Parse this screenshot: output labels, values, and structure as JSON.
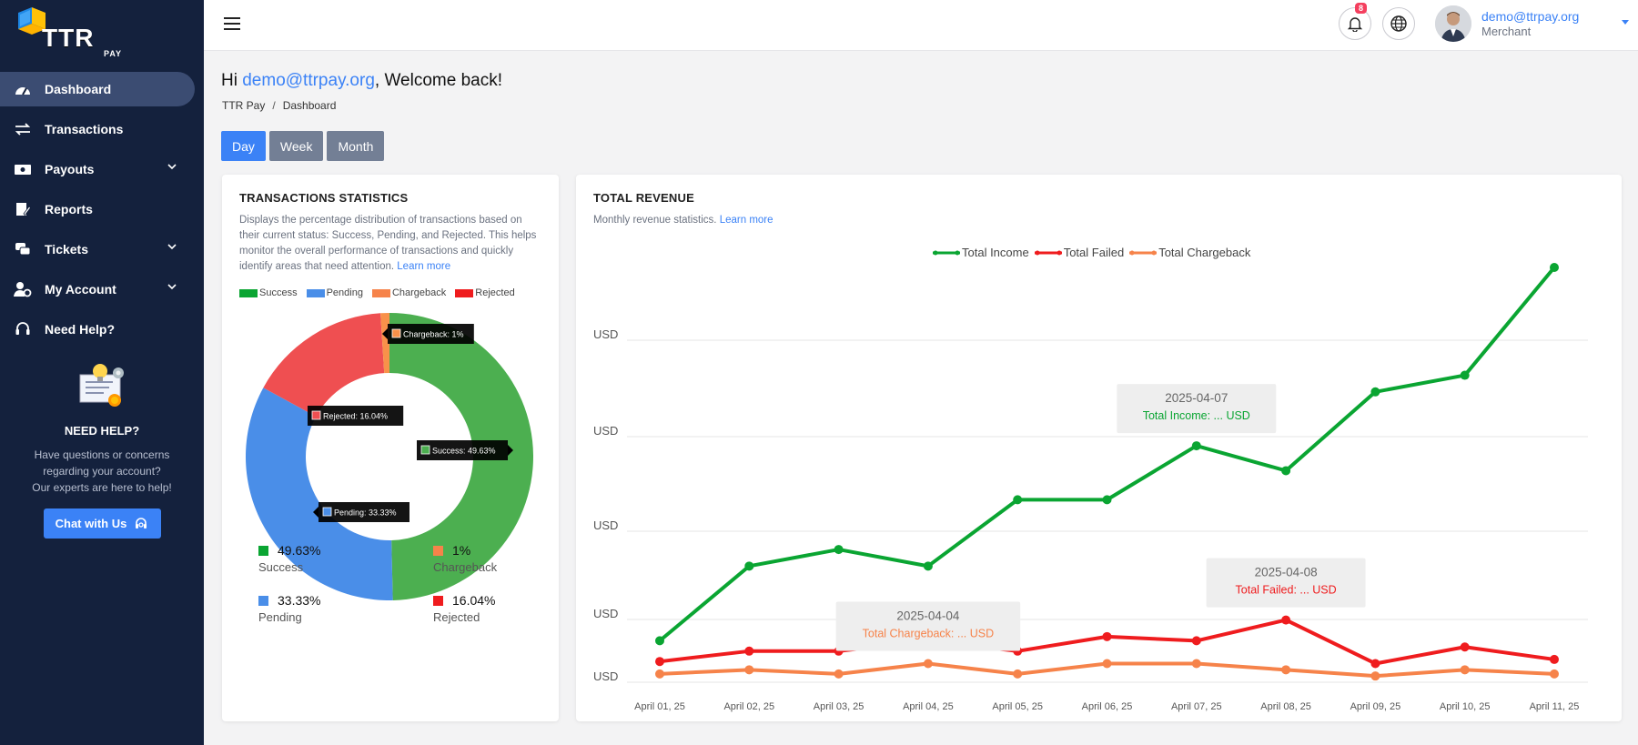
{
  "logo": {
    "text": "TTR",
    "sub": "PAY"
  },
  "sidebar": {
    "items": [
      {
        "label": "Dashboard",
        "icon": "gauge-icon",
        "active": true,
        "chevron": false
      },
      {
        "label": "Transactions",
        "icon": "arrows-exchange-icon",
        "active": false,
        "chevron": false
      },
      {
        "label": "Payouts",
        "icon": "money-bill-icon",
        "active": false,
        "chevron": true
      },
      {
        "label": "Reports",
        "icon": "report-edit-icon",
        "active": false,
        "chevron": false
      },
      {
        "label": "Tickets",
        "icon": "chat-bubbles-icon",
        "active": false,
        "chevron": true
      },
      {
        "label": "My Account",
        "icon": "user-cog-icon",
        "active": false,
        "chevron": true
      },
      {
        "label": "Need Help?",
        "icon": "headset-icon",
        "active": false,
        "chevron": false
      }
    ],
    "help": {
      "title": "NEED HELP?",
      "text_line1": "Have questions or concerns",
      "text_line2": "regarding your account?",
      "text_line3": "Our experts are here to help!",
      "button": "Chat with Us"
    }
  },
  "topbar": {
    "notifications": "8",
    "user_email": "demo@ttrpay.org",
    "user_role": "Merchant"
  },
  "main": {
    "welcome_prefix": "Hi ",
    "welcome_email": "demo@ttrpay.org",
    "welcome_suffix": ", Welcome back!",
    "breadcrumb": [
      "TTR Pay",
      "Dashboard"
    ],
    "periods": [
      {
        "label": "Day",
        "active": true
      },
      {
        "label": "Week",
        "active": false
      },
      {
        "label": "Month",
        "active": false
      }
    ]
  },
  "stats_card": {
    "title": "TRANSACTIONS STATISTICS",
    "description": "Displays the percentage distribution of transactions based on their current status: Success, Pending, and Rejected. This helps monitor the overall performance of transactions and quickly identify areas that need attention.",
    "learn_more": "Learn more",
    "colors": {
      "success": "#4caf50",
      "pending": "#4a8ee8",
      "chargeback": "#f8914a",
      "rejected": "#ef4f51"
    },
    "legend": [
      "Success",
      "Pending",
      "Chargeback",
      "Rejected"
    ],
    "tooltips": {
      "chargeback": "Chargeback: 1%",
      "rejected": "Rejected: 16.04%",
      "success": "Success: 49.63%",
      "pending": "Pending: 33.33%"
    },
    "stats": [
      {
        "value": "49.63%",
        "label": "Success"
      },
      {
        "value": "1%",
        "label": "Chargeback"
      },
      {
        "value": "33.33%",
        "label": "Pending"
      },
      {
        "value": "16.04%",
        "label": "Rejected"
      }
    ]
  },
  "revenue_card": {
    "title": "TOTAL REVENUE",
    "description": "Monthly revenue statistics.",
    "learn_more": "Learn more"
  },
  "chart_data": [
    {
      "type": "pie",
      "categories": [
        "Success",
        "Pending",
        "Chargeback",
        "Rejected"
      ],
      "values": [
        49.63,
        33.33,
        1,
        16.04
      ],
      "unit": "%",
      "donut": true
    },
    {
      "type": "line",
      "x": [
        "April 01, 25",
        "April 02, 25",
        "April 03, 25",
        "April 04, 25",
        "April 05, 25",
        "April 06, 25",
        "April 07, 25",
        "April 08, 25",
        "April 09, 25",
        "April 10, 25",
        "April 11, 25"
      ],
      "y_tick_labels": [
        "USD",
        "USD",
        "USD",
        "USD",
        "USD"
      ],
      "ylim": [
        0,
        100
      ],
      "grid": true,
      "legend_position": "top-center",
      "series": [
        {
          "name": "Total Income",
          "color": "#0aa532",
          "values": [
            10,
            28,
            32,
            28,
            44,
            44,
            57,
            51,
            70,
            74,
            100
          ]
        },
        {
          "name": "Total Failed",
          "color": "#ef1c1e",
          "values": [
            5,
            7.5,
            7.5,
            10,
            7.5,
            11,
            10,
            15,
            4.5,
            8.5,
            5.5
          ]
        },
        {
          "name": "Total Chargeback",
          "color": "#f6834a",
          "values": [
            2,
            3,
            2,
            4.5,
            2,
            4.5,
            4.5,
            3,
            1.5,
            3,
            2
          ]
        }
      ],
      "annotations": [
        {
          "date": "2025-04-07",
          "text": "Total Income: ... USD",
          "series": 0,
          "index": 6
        },
        {
          "date": "2025-04-04",
          "text": "Total Chargeback: ... USD",
          "series": 2,
          "index": 3
        },
        {
          "date": "2025-04-08",
          "text": "Total Failed: ... USD",
          "series": 1,
          "index": 7
        }
      ]
    }
  ]
}
